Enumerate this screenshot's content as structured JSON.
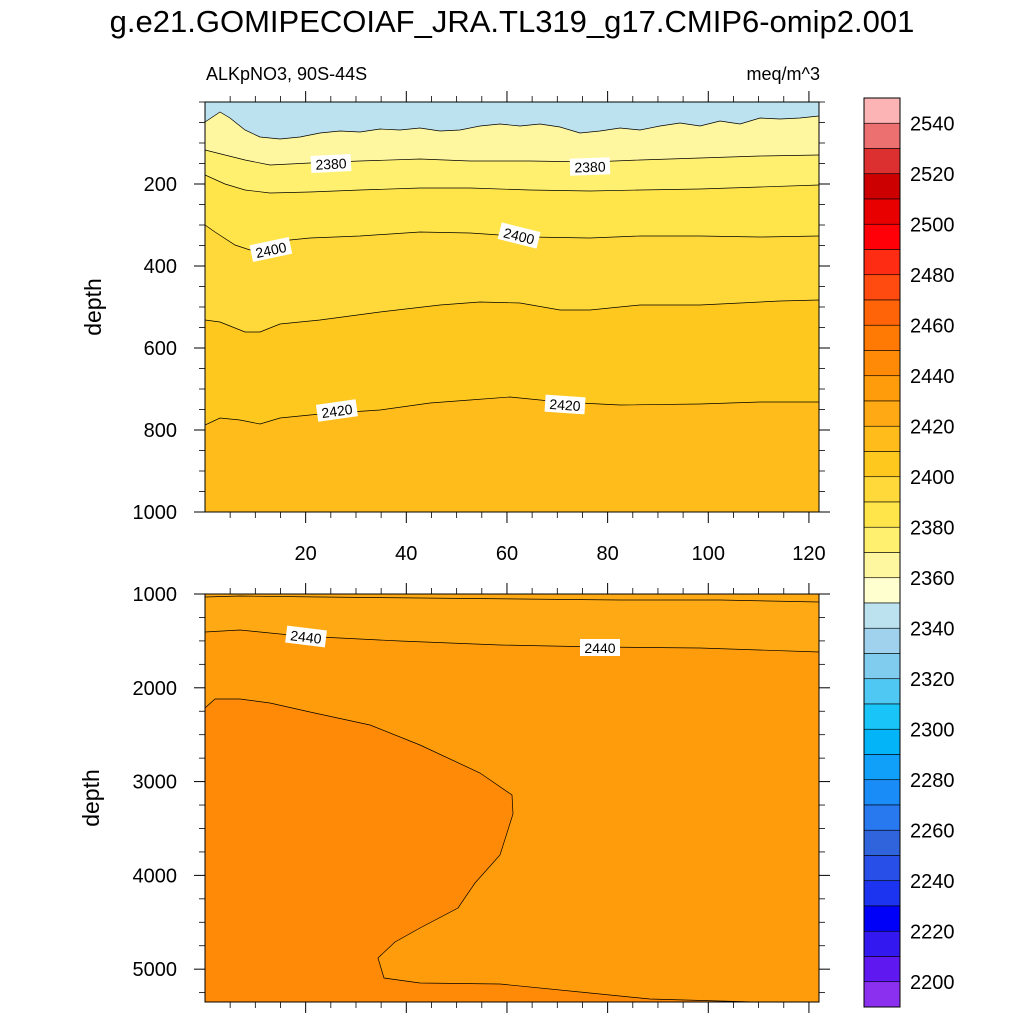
{
  "chart_data": [
    {
      "type": "contour",
      "panel": "upper",
      "title": "g.e21.GOMIPECOIAF_JRA.TL319_g17.CMIP6-omip2.001",
      "subtitle_left": "ALKpNO3, 90S-44S",
      "subtitle_right": "meq/m^3",
      "xlabel": "",
      "ylabel": "depth",
      "xlim": [
        0,
        122
      ],
      "ylim": [
        1000,
        0
      ],
      "x_ticks": [
        20,
        40,
        60,
        80,
        100,
        120
      ],
      "y_ticks": [
        200,
        400,
        600,
        800,
        1000
      ],
      "contour_labels": [
        {
          "text": "2380",
          "x": 25,
          "depth": 155
        },
        {
          "text": "2380",
          "x": 75,
          "depth": 160
        },
        {
          "text": "2400",
          "x": 13,
          "depth": 375
        },
        {
          "text": "2400",
          "x": 67,
          "depth": 320
        },
        {
          "text": "2420",
          "x": 26,
          "depth": 765
        },
        {
          "text": "2420",
          "x": 71,
          "depth": 750
        }
      ]
    },
    {
      "type": "contour",
      "panel": "lower",
      "xlabel": "",
      "ylabel": "depth",
      "xlim": [
        0,
        122
      ],
      "ylim": [
        5350,
        1000
      ],
      "y_ticks": [
        1000,
        2000,
        3000,
        4000,
        5000
      ],
      "contour_labels": [
        {
          "text": "2440",
          "x": 20,
          "depth": 1450
        },
        {
          "text": "2440",
          "x": 78,
          "depth": 1580
        }
      ]
    }
  ],
  "colorbar": {
    "labels": [
      "2200",
      "2220",
      "2240",
      "2260",
      "2280",
      "2300",
      "2320",
      "2340",
      "2360",
      "2380",
      "2400",
      "2420",
      "2440",
      "2460",
      "2480",
      "2500",
      "2520",
      "2540"
    ],
    "colors": [
      "#8c30f0",
      "#6018f0",
      "#3418f0",
      "#0000f8",
      "#1c34f0",
      "#2850e8",
      "#3064dc",
      "#2878f0",
      "#1a8cf8",
      "#10a0fa",
      "#04b4f8",
      "#18c4f8",
      "#50c8f4",
      "#80ccef",
      "#a0d2ed",
      "#bce2f0",
      "#ffffd0",
      "#fff6a0",
      "#fff070",
      "#ffe44a",
      "#ffd83a",
      "#ffc81e",
      "#ffbc1a",
      "#ffaa14",
      "#ff9c0c",
      "#ff8a08",
      "#ff7a04",
      "#ff6408",
      "#ff4a10",
      "#ff2c14",
      "#ff0008",
      "#e80000",
      "#cc0000",
      "#dc3030",
      "#ec7070",
      "#fcb4b4"
    ]
  }
}
